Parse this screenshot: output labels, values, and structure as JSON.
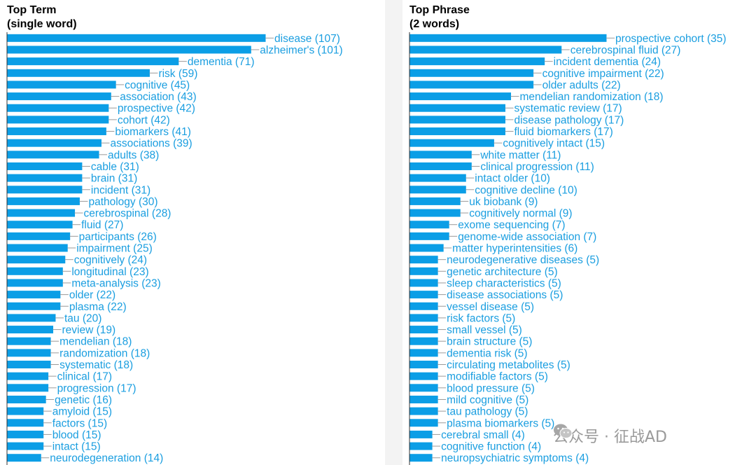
{
  "chart_data": [
    {
      "type": "bar",
      "orientation": "horizontal",
      "title_line1": "Top Term",
      "title_line2": "(single word)",
      "xlim": [
        0,
        107
      ],
      "bar_color": "#0b9ee6",
      "label_color": "#1a9ee0",
      "categories": [
        "disease",
        "alzheimer's",
        "dementia",
        "risk",
        "cognitive",
        "association",
        "prospective",
        "cohort",
        "biomarkers",
        "associations",
        "adults",
        "cable",
        "brain",
        "incident",
        "pathology",
        "cerebrospinal",
        "fluid",
        "participants",
        "impairment",
        "cognitively",
        "longitudinal",
        "meta-analysis",
        "older",
        "plasma",
        "tau",
        "review",
        "mendelian",
        "randomization",
        "systematic",
        "clinical",
        "progression",
        "genetic",
        "amyloid",
        "factors",
        "blood",
        "intact",
        "neurodegeneration"
      ],
      "values": [
        107,
        101,
        71,
        59,
        45,
        43,
        42,
        42,
        41,
        39,
        38,
        31,
        31,
        31,
        30,
        28,
        27,
        26,
        25,
        24,
        23,
        23,
        22,
        22,
        20,
        19,
        18,
        18,
        18,
        17,
        17,
        16,
        15,
        15,
        15,
        15,
        14
      ],
      "labels": [
        "disease (107)",
        "alzheimer's (101)",
        "dementia (71)",
        "risk (59)",
        "cognitive (45)",
        "association (43)",
        "prospective (42)",
        "cohort (42)",
        "biomarkers (41)",
        "associations (39)",
        "adults (38)",
        "cable (31)",
        "brain (31)",
        "incident (31)",
        "pathology (30)",
        "cerebrospinal (28)",
        "fluid (27)",
        "participants (26)",
        "impairment (25)",
        "cognitively (24)",
        "longitudinal (23)",
        "meta-analysis (23)",
        "older (22)",
        "plasma (22)",
        "tau (20)",
        "review (19)",
        "mendelian (18)",
        "randomization (18)",
        "systematic (18)",
        "clinical (17)",
        "progression (17)",
        "genetic (16)",
        "amyloid (15)",
        "factors (15)",
        "blood (15)",
        "intact (15)",
        "neurodegeneration (14)"
      ]
    },
    {
      "type": "bar",
      "orientation": "horizontal",
      "title_line1": "Top Phrase",
      "title_line2": "(2 words)",
      "xlim": [
        0,
        35
      ],
      "bar_color": "#0b9ee6",
      "label_color": "#1a9ee0",
      "categories": [
        "prospective cohort",
        "cerebrospinal fluid",
        "incident dementia",
        "cognitive impairment",
        "older adults",
        "mendelian randomization",
        "systematic review",
        "disease pathology",
        "fluid biomarkers",
        "cognitively intact",
        "white matter",
        "clinical progression",
        "intact older",
        "cognitive decline",
        "uk biobank",
        "cognitively normal",
        "exome sequencing",
        "genome-wide association",
        "matter hyperintensities",
        "neurodegenerative diseases",
        "genetic architecture",
        "sleep characteristics",
        "disease associations",
        "vessel disease",
        "risk factors",
        "small vessel",
        "brain structure",
        "dementia risk",
        "circulating metabolites",
        "modifiable factors",
        "blood pressure",
        "mild cognitive",
        "tau pathology",
        "plasma biomarkers",
        "cerebral small",
        "cognitive function",
        "neuropsychiatric symptoms"
      ],
      "values": [
        35,
        27,
        24,
        22,
        22,
        18,
        17,
        17,
        17,
        15,
        11,
        11,
        10,
        10,
        9,
        9,
        7,
        7,
        6,
        5,
        5,
        5,
        5,
        5,
        5,
        5,
        5,
        5,
        5,
        5,
        5,
        5,
        5,
        5,
        4,
        4,
        4
      ],
      "labels": [
        "prospective cohort (35)",
        "cerebrospinal fluid (27)",
        "incident dementia (24)",
        "cognitive impairment (22)",
        "older adults (22)",
        "mendelian randomization (18)",
        "systematic review (17)",
        "disease pathology (17)",
        "fluid biomarkers (17)",
        "cognitively intact (15)",
        "white matter (11)",
        "clinical progression (11)",
        "intact older (10)",
        "cognitive decline (10)",
        "uk biobank (9)",
        "cognitively normal (9)",
        "exome sequencing (7)",
        "genome-wide association (7)",
        "matter hyperintensities (6)",
        "neurodegenerative diseases (5)",
        "genetic architecture (5)",
        "sleep characteristics (5)",
        "disease associations (5)",
        "vessel disease (5)",
        "risk factors (5)",
        "small vessel (5)",
        "brain structure (5)",
        "dementia risk (5)",
        "circulating metabolites (5)",
        "modifiable factors (5)",
        "blood pressure (5)",
        "mild cognitive (5)",
        "tau pathology (5)",
        "plasma biomarkers (5)",
        "cerebral small (4)",
        "cognitive function (4)",
        "neuropsychiatric symptoms (4)"
      ]
    }
  ],
  "watermark": {
    "text": "公众号 · 征战AD",
    "icon": "wechat-icon"
  }
}
